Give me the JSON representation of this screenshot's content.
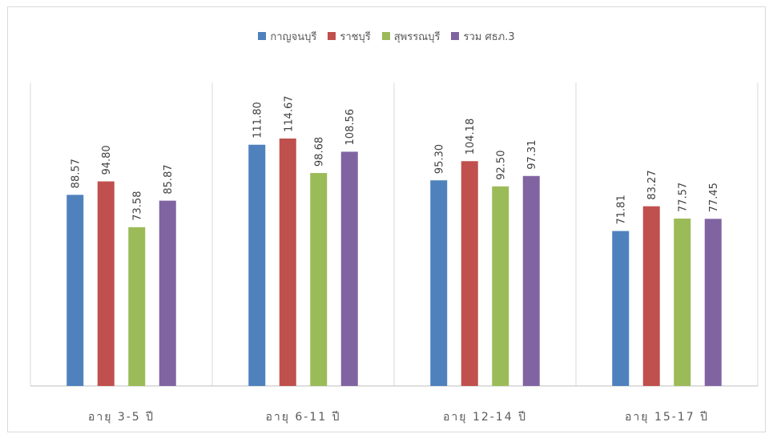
{
  "chart_data": {
    "type": "bar",
    "title": "",
    "xlabel": "",
    "ylabel": "",
    "categories": [
      "อายุ 3-5 ปี",
      "อายุ 6-11 ปี",
      "อายุ 12-14 ปี",
      "อายุ 15-17 ปี"
    ],
    "ylim": [
      0,
      130
    ],
    "grid": false,
    "legend_position": "top",
    "series": [
      {
        "name": "กาญจนบุรี",
        "color": "#4f81bd",
        "values": [
          88.57,
          111.8,
          95.3,
          71.81
        ],
        "labels": [
          "88.57",
          "111.80",
          "95.30",
          "71.81"
        ]
      },
      {
        "name": "ราชบุรี",
        "color": "#c0504d",
        "values": [
          94.8,
          114.67,
          104.18,
          83.27
        ],
        "labels": [
          "94.80",
          "114.67",
          "104.18",
          "83.27"
        ]
      },
      {
        "name": "สุพรรณบุรี",
        "color": "#9bbb59",
        "values": [
          73.58,
          98.68,
          92.5,
          77.57
        ],
        "labels": [
          "73.58",
          "98.68",
          "92.50",
          "77.57"
        ]
      },
      {
        "name": "รวม ศธภ.3",
        "color": "#8064a2",
        "values": [
          85.87,
          108.56,
          97.31,
          77.45
        ],
        "labels": [
          "85.87",
          "108.56",
          "97.31",
          "77.45"
        ]
      }
    ]
  }
}
